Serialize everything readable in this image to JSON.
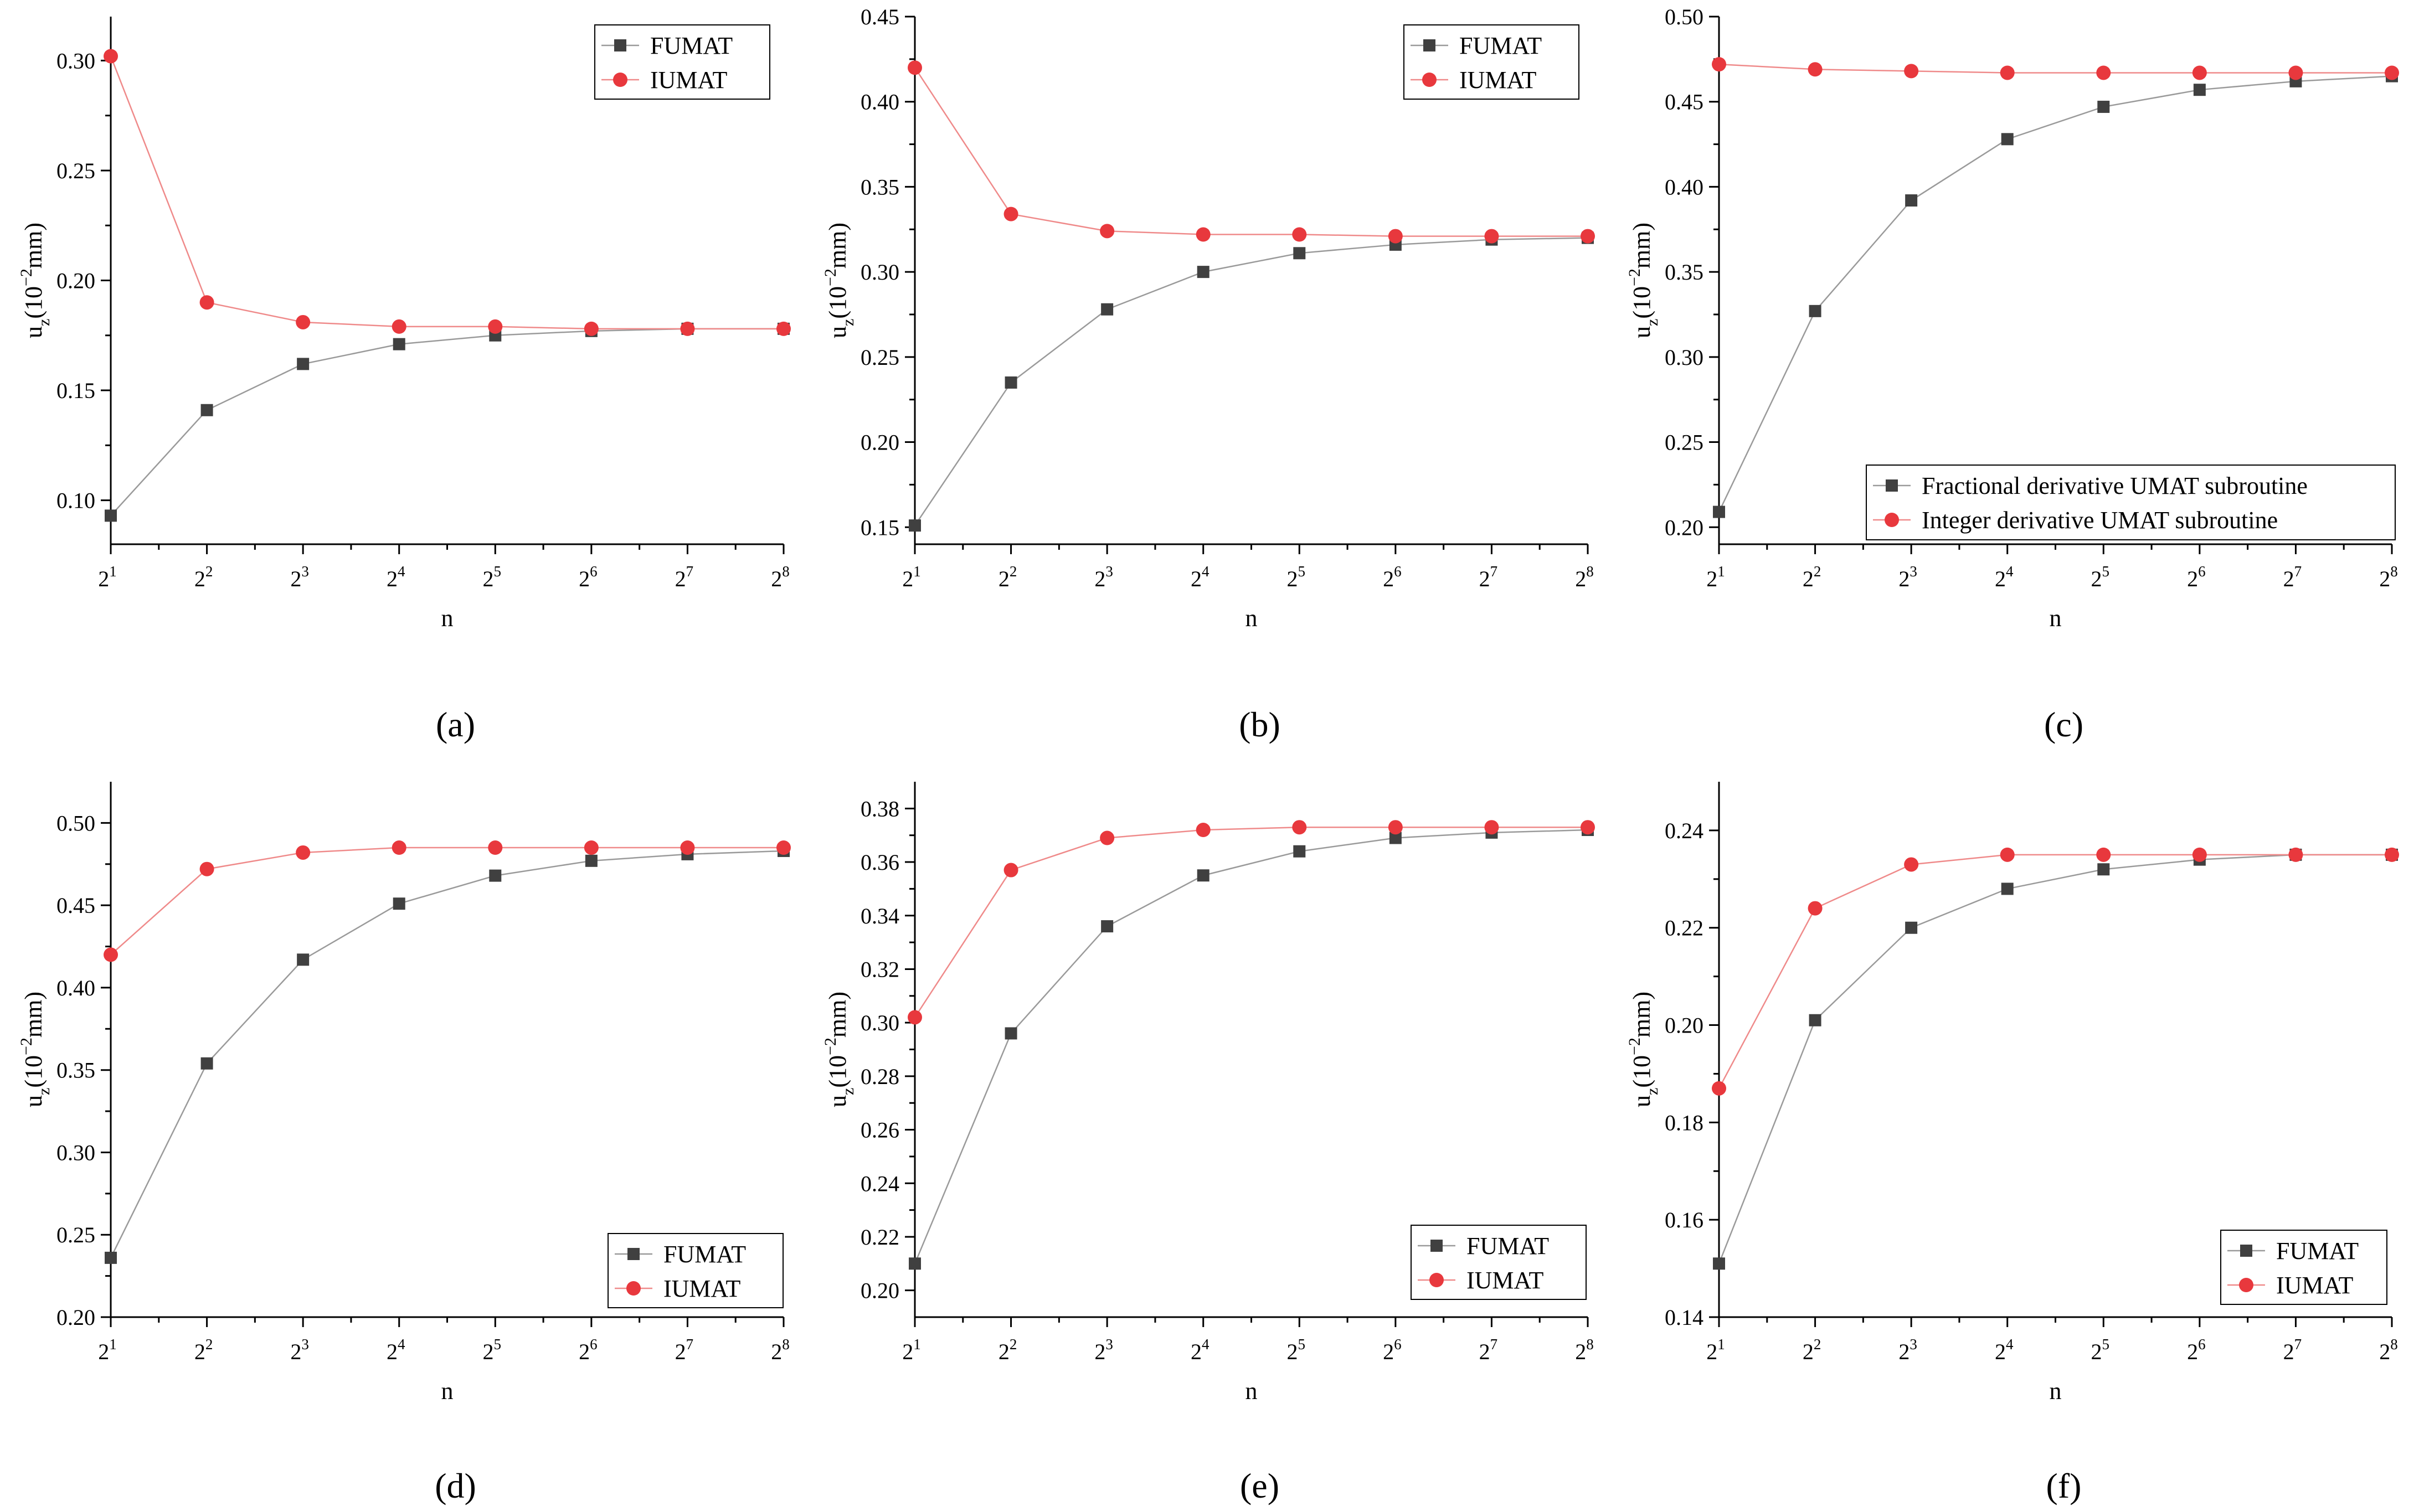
{
  "figure": {
    "captions": [
      "(a)",
      "(b)",
      "(c)",
      "(d)",
      "(e)",
      "(f)"
    ]
  },
  "chart_data": [
    {
      "type": "line",
      "panel": "(a)",
      "xlabel": "n",
      "ylabel_base": "u",
      "ylabel_sub": "z",
      "ylabel_mid": "(10",
      "ylabel_sup": "−2",
      "ylabel_end": "mm)",
      "x_base": "2",
      "x": [
        1,
        2,
        3,
        4,
        5,
        6,
        7,
        8
      ],
      "ylim": [
        0.08,
        0.32
      ],
      "yticks": [
        "0.10",
        "0.15",
        "0.20",
        "0.25",
        "0.30"
      ],
      "ytick_values": [
        0.1,
        0.15,
        0.2,
        0.25,
        0.3
      ],
      "legend_position": "top-right",
      "series": [
        {
          "name": "FUMAT",
          "marker": "square",
          "color": "#404040",
          "line_color": "#9a9a9a",
          "values": [
            0.093,
            0.141,
            0.162,
            0.171,
            0.175,
            0.177,
            0.178,
            0.178
          ]
        },
        {
          "name": "IUMAT",
          "marker": "circle",
          "color": "#e8383d",
          "line_color": "#ef8a8a",
          "values": [
            0.302,
            0.19,
            0.181,
            0.179,
            0.179,
            0.178,
            0.178,
            0.178
          ]
        }
      ]
    },
    {
      "type": "line",
      "panel": "(b)",
      "xlabel": "n",
      "ylabel_base": "u",
      "ylabel_sub": "z",
      "ylabel_mid": "(10",
      "ylabel_sup": "−2",
      "ylabel_end": "mm)",
      "x_base": "2",
      "x": [
        1,
        2,
        3,
        4,
        5,
        6,
        7,
        8
      ],
      "ylim": [
        0.14,
        0.45
      ],
      "yticks": [
        "0.15",
        "0.20",
        "0.25",
        "0.30",
        "0.35",
        "0.40",
        "0.45"
      ],
      "ytick_values": [
        0.15,
        0.2,
        0.25,
        0.3,
        0.35,
        0.4,
        0.45
      ],
      "legend_position": "top-right",
      "series": [
        {
          "name": "FUMAT",
          "marker": "square",
          "color": "#404040",
          "line_color": "#9a9a9a",
          "values": [
            0.151,
            0.235,
            0.278,
            0.3,
            0.311,
            0.316,
            0.319,
            0.32
          ]
        },
        {
          "name": "IUMAT",
          "marker": "circle",
          "color": "#e8383d",
          "line_color": "#ef8a8a",
          "values": [
            0.42,
            0.334,
            0.324,
            0.322,
            0.322,
            0.321,
            0.321,
            0.321
          ]
        }
      ]
    },
    {
      "type": "line",
      "panel": "(c)",
      "xlabel": "n",
      "ylabel_base": "u",
      "ylabel_sub": "z",
      "ylabel_mid": "(10",
      "ylabel_sup": "−2",
      "ylabel_end": "mm)",
      "x_base": "2",
      "x": [
        1,
        2,
        3,
        4,
        5,
        6,
        7,
        8
      ],
      "ylim": [
        0.19,
        0.5
      ],
      "yticks": [
        "0.20",
        "0.25",
        "0.30",
        "0.35",
        "0.40",
        "0.45",
        "0.50"
      ],
      "ytick_values": [
        0.2,
        0.25,
        0.3,
        0.35,
        0.4,
        0.45,
        0.5
      ],
      "legend_position": "bottom-right",
      "series": [
        {
          "name": "Fractional derivative UMAT subroutine",
          "marker": "square",
          "color": "#404040",
          "line_color": "#9a9a9a",
          "values": [
            0.209,
            0.327,
            0.392,
            0.428,
            0.447,
            0.457,
            0.462,
            0.465
          ]
        },
        {
          "name": "Integer derivative UMAT subroutine",
          "marker": "circle",
          "color": "#e8383d",
          "line_color": "#ef8a8a",
          "values": [
            0.472,
            0.469,
            0.468,
            0.467,
            0.467,
            0.467,
            0.467,
            0.467
          ]
        }
      ]
    },
    {
      "type": "line",
      "panel": "(d)",
      "xlabel": "n",
      "ylabel_base": "u",
      "ylabel_sub": "z",
      "ylabel_mid": "(10",
      "ylabel_sup": "−2",
      "ylabel_end": "mm)",
      "x_base": "2",
      "x": [
        1,
        2,
        3,
        4,
        5,
        6,
        7,
        8
      ],
      "ylim": [
        0.2,
        0.525
      ],
      "yticks": [
        "0.20",
        "0.25",
        "0.30",
        "0.35",
        "0.40",
        "0.45",
        "0.50"
      ],
      "ytick_values": [
        0.2,
        0.25,
        0.3,
        0.35,
        0.4,
        0.45,
        0.5
      ],
      "legend_position": "bottom-right",
      "series": [
        {
          "name": "FUMAT",
          "marker": "square",
          "color": "#404040",
          "line_color": "#9a9a9a",
          "values": [
            0.236,
            0.354,
            0.417,
            0.451,
            0.468,
            0.477,
            0.481,
            0.483
          ]
        },
        {
          "name": "IUMAT",
          "marker": "circle",
          "color": "#e8383d",
          "line_color": "#ef8a8a",
          "values": [
            0.42,
            0.472,
            0.482,
            0.485,
            0.485,
            0.485,
            0.485,
            0.485
          ]
        }
      ]
    },
    {
      "type": "line",
      "panel": "(e)",
      "xlabel": "n",
      "ylabel_base": "u",
      "ylabel_sub": "z",
      "ylabel_mid": "(10",
      "ylabel_sup": "−2",
      "ylabel_end": "mm)",
      "x_base": "2",
      "x": [
        1,
        2,
        3,
        4,
        5,
        6,
        7,
        8
      ],
      "ylim": [
        0.19,
        0.39
      ],
      "yticks": [
        "0.20",
        "0.22",
        "0.24",
        "0.26",
        "0.28",
        "0.30",
        "0.32",
        "0.34",
        "0.36",
        "0.38"
      ],
      "ytick_values": [
        0.2,
        0.22,
        0.24,
        0.26,
        0.28,
        0.3,
        0.32,
        0.34,
        0.36,
        0.38
      ],
      "legend_position": "bottom-right",
      "series": [
        {
          "name": "FUMAT",
          "marker": "square",
          "color": "#404040",
          "line_color": "#9a9a9a",
          "values": [
            0.21,
            0.296,
            0.336,
            0.355,
            0.364,
            0.369,
            0.371,
            0.372
          ]
        },
        {
          "name": "IUMAT",
          "marker": "circle",
          "color": "#e8383d",
          "line_color": "#ef8a8a",
          "values": [
            0.302,
            0.357,
            0.369,
            0.372,
            0.373,
            0.373,
            0.373,
            0.373
          ]
        }
      ]
    },
    {
      "type": "line",
      "panel": "(f)",
      "xlabel": "n",
      "ylabel_base": "u",
      "ylabel_sub": "z",
      "ylabel_mid": "(10",
      "ylabel_sup": "−2",
      "ylabel_end": "mm)",
      "x_base": "2",
      "x": [
        1,
        2,
        3,
        4,
        5,
        6,
        7,
        8
      ],
      "ylim": [
        0.14,
        0.25
      ],
      "yticks": [
        "0.14",
        "0.16",
        "0.18",
        "0.20",
        "0.22",
        "0.24"
      ],
      "ytick_values": [
        0.14,
        0.16,
        0.18,
        0.2,
        0.22,
        0.24
      ],
      "legend_position": "bottom-right",
      "series": [
        {
          "name": "FUMAT",
          "marker": "square",
          "color": "#404040",
          "line_color": "#9a9a9a",
          "values": [
            0.151,
            0.201,
            0.22,
            0.228,
            0.232,
            0.234,
            0.235,
            0.235
          ]
        },
        {
          "name": "IUMAT",
          "marker": "circle",
          "color": "#e8383d",
          "line_color": "#ef8a8a",
          "values": [
            0.187,
            0.224,
            0.233,
            0.235,
            0.235,
            0.235,
            0.235,
            0.235
          ]
        }
      ]
    }
  ]
}
